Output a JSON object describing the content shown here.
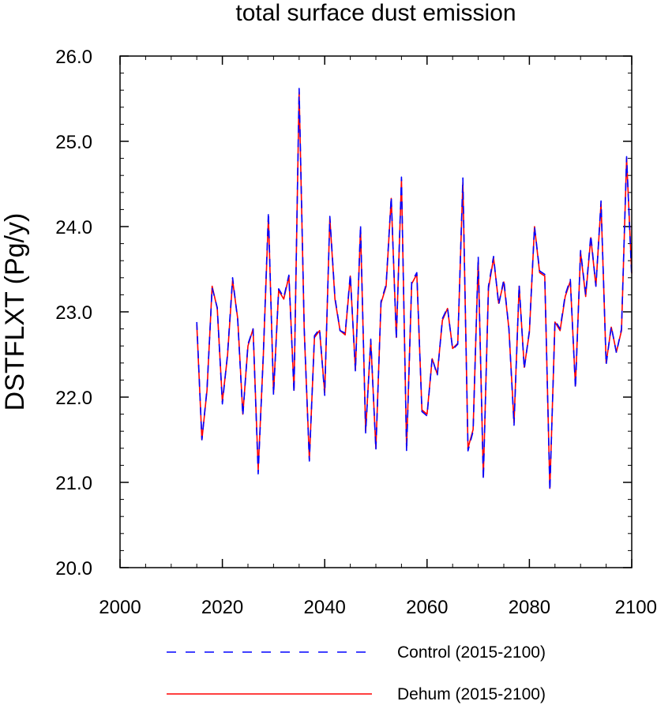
{
  "chart_data": {
    "type": "line",
    "title": "total surface dust emission",
    "xlabel": "",
    "ylabel": "DSTFLXT  (Pg/y)",
    "xlim": [
      2000,
      2100
    ],
    "ylim": [
      20.0,
      26.0
    ],
    "x_ticks": [
      2000,
      2020,
      2040,
      2060,
      2080,
      2100
    ],
    "y_ticks": [
      "20.0",
      "21.0",
      "22.0",
      "23.0",
      "24.0",
      "25.0",
      "26.0"
    ],
    "grid": false,
    "legend_position": "bottom",
    "x": [
      2015,
      2016,
      2017,
      2018,
      2019,
      2020,
      2021,
      2022,
      2023,
      2024,
      2025,
      2026,
      2027,
      2028,
      2029,
      2030,
      2031,
      2032,
      2033,
      2034,
      2035,
      2036,
      2037,
      2038,
      2039,
      2040,
      2041,
      2042,
      2043,
      2044,
      2045,
      2046,
      2047,
      2048,
      2049,
      2050,
      2051,
      2052,
      2053,
      2054,
      2055,
      2056,
      2057,
      2058,
      2059,
      2060,
      2061,
      2062,
      2063,
      2064,
      2065,
      2066,
      2067,
      2068,
      2069,
      2070,
      2071,
      2072,
      2073,
      2074,
      2075,
      2076,
      2077,
      2078,
      2079,
      2080,
      2081,
      2082,
      2083,
      2084,
      2085,
      2086,
      2087,
      2088,
      2089,
      2090,
      2091,
      2092,
      2093,
      2094,
      2095,
      2096,
      2097,
      2098,
      2099,
      2100
    ],
    "series": [
      {
        "name": "Control (2015-2100)",
        "color": "#0000ff",
        "style": "dashed",
        "values": [
          22.88,
          21.5,
          22.1,
          23.28,
          23.05,
          21.92,
          22.5,
          23.4,
          22.9,
          21.78,
          22.62,
          22.8,
          21.1,
          22.5,
          24.17,
          22.02,
          23.27,
          23.17,
          23.43,
          22.05,
          25.62,
          22.8,
          21.25,
          22.72,
          22.8,
          22.02,
          24.12,
          23.17,
          22.78,
          22.75,
          23.44,
          22.3,
          24.02,
          21.58,
          22.68,
          21.38,
          23.12,
          23.32,
          24.35,
          22.68,
          24.58,
          21.36,
          23.35,
          23.46,
          21.83,
          21.78,
          22.46,
          22.25,
          22.92,
          23.05,
          22.56,
          22.62,
          24.57,
          21.37,
          21.6,
          23.65,
          21.03,
          23.3,
          23.65,
          23.08,
          23.38,
          22.8,
          21.67,
          23.32,
          22.33,
          22.78,
          24.0,
          23.48,
          23.44,
          20.9,
          22.9,
          22.8,
          23.2,
          23.38,
          22.1,
          23.72,
          23.2,
          23.9,
          23.3,
          24.3,
          22.38,
          22.83,
          22.52,
          22.8,
          24.82,
          23.4
        ]
      },
      {
        "name": "Dehum (2015-2100)",
        "color": "#ff0000",
        "style": "solid",
        "values": [
          22.85,
          21.5,
          22.08,
          23.3,
          23.04,
          21.95,
          22.48,
          23.37,
          22.92,
          21.8,
          22.6,
          22.8,
          21.15,
          22.48,
          24.12,
          22.05,
          23.25,
          23.15,
          23.42,
          22.08,
          25.58,
          22.78,
          21.27,
          22.7,
          22.78,
          22.05,
          24.1,
          23.15,
          22.78,
          22.73,
          23.42,
          22.32,
          23.98,
          21.6,
          22.66,
          21.4,
          23.1,
          23.3,
          24.33,
          22.7,
          24.55,
          21.4,
          23.33,
          23.44,
          21.85,
          21.8,
          22.45,
          22.27,
          22.9,
          23.04,
          22.57,
          22.63,
          24.52,
          21.4,
          21.62,
          23.6,
          21.07,
          23.27,
          23.63,
          23.1,
          23.35,
          22.8,
          21.7,
          23.3,
          22.35,
          22.76,
          24.0,
          23.46,
          23.42,
          20.93,
          22.88,
          22.78,
          23.18,
          23.36,
          22.13,
          23.7,
          23.18,
          23.87,
          23.3,
          24.27,
          22.4,
          22.82,
          22.53,
          22.78,
          24.8,
          23.45
        ]
      }
    ]
  },
  "colors": {
    "axis": "#000000",
    "control": "#0000ff",
    "dehum": "#ff0000"
  }
}
